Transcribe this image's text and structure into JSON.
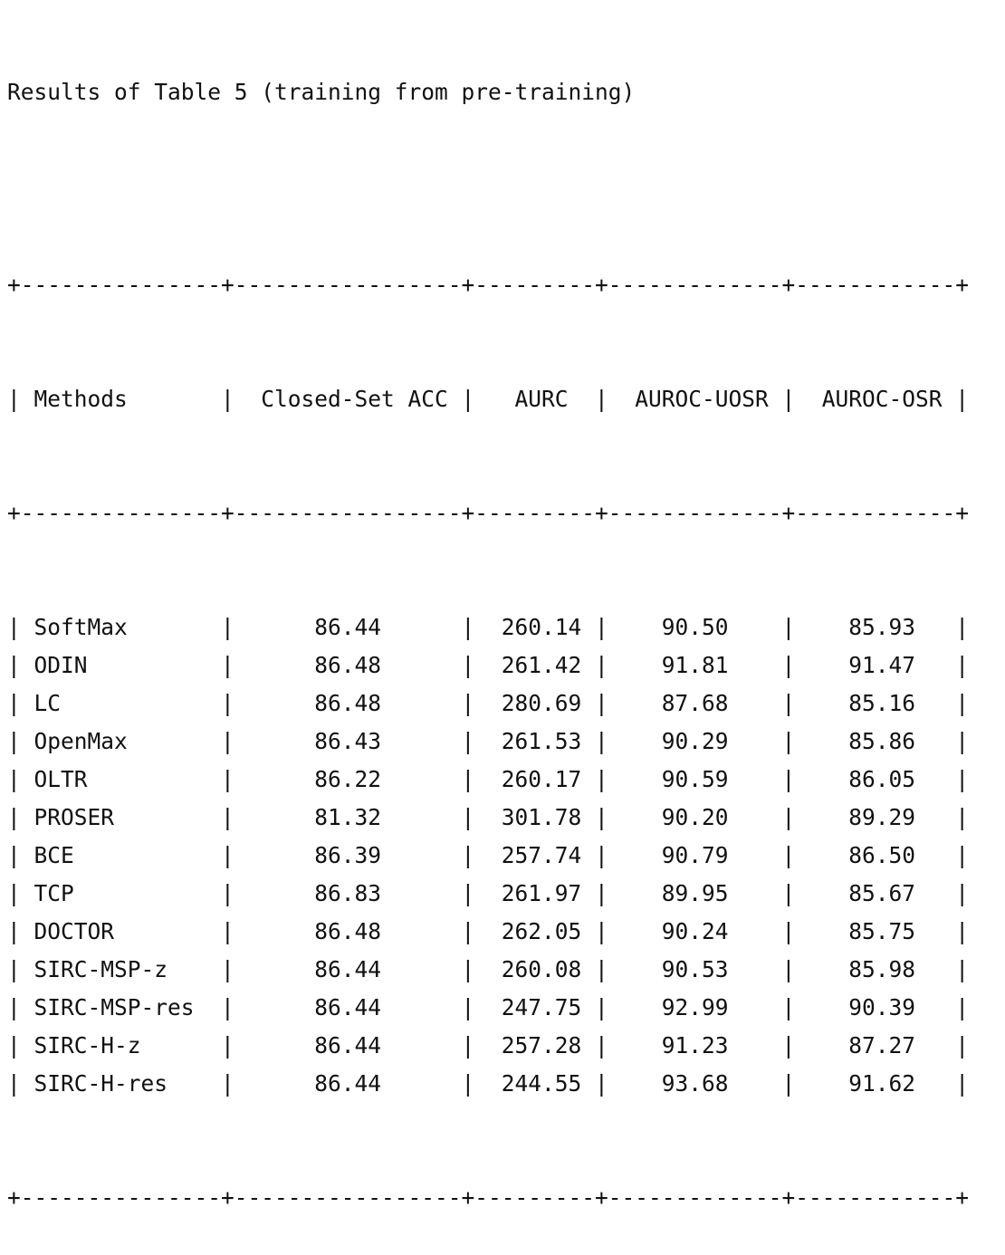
{
  "title": "Results of Table 5 (training from pre-training)",
  "border": "+---------------+-----------------+---------+-------------+------------+",
  "columns": [
    {
      "label": "Methods",
      "width": 15,
      "align": "left"
    },
    {
      "label": "Closed-Set ACC",
      "width": 17,
      "align": "center"
    },
    {
      "label": "AURC",
      "width": 9,
      "align": "center"
    },
    {
      "label": "AUROC-UOSR",
      "width": 13,
      "align": "center"
    },
    {
      "label": "AUROC-OSR",
      "width": 12,
      "align": "center"
    }
  ],
  "rows": [
    [
      "SoftMax",
      "86.44",
      "260.14",
      "90.50",
      "85.93"
    ],
    [
      "ODIN",
      "86.48",
      "261.42",
      "91.81",
      "91.47"
    ],
    [
      "LC",
      "86.48",
      "280.69",
      "87.68",
      "85.16"
    ],
    [
      "OpenMax",
      "86.43",
      "261.53",
      "90.29",
      "85.86"
    ],
    [
      "OLTR",
      "86.22",
      "260.17",
      "90.59",
      "86.05"
    ],
    [
      "PROSER",
      "81.32",
      "301.78",
      "90.20",
      "89.29"
    ],
    [
      "BCE",
      "86.39",
      "257.74",
      "90.79",
      "86.50"
    ],
    [
      "TCP",
      "86.83",
      "261.97",
      "89.95",
      "85.67"
    ],
    [
      "DOCTOR",
      "86.48",
      "262.05",
      "90.24",
      "85.75"
    ],
    [
      "SIRC-MSP-z",
      "86.44",
      "260.08",
      "90.53",
      "85.98"
    ],
    [
      "SIRC-MSP-res",
      "86.44",
      "247.75",
      "92.99",
      "90.39"
    ],
    [
      "SIRC-H-z",
      "86.44",
      "257.28",
      "91.23",
      "87.27"
    ],
    [
      "SIRC-H-res",
      "86.44",
      "244.55",
      "93.68",
      "91.62"
    ]
  ]
}
